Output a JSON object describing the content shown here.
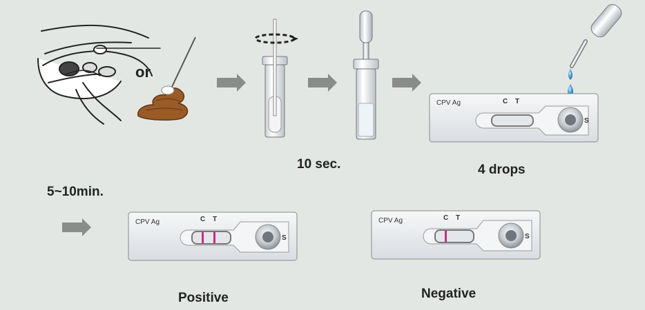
{
  "or_label": "or",
  "step_time": "10 sec.",
  "step_drops": "4 drops",
  "wait_time": "5~10min.",
  "cassette": {
    "name": "CPV Ag",
    "control_mark": "C",
    "test_mark": "T",
    "sample_mark": "S"
  },
  "results": {
    "positive": "Positive",
    "negative": "Negative"
  },
  "colors": {
    "background": "#e3e7e3",
    "arrow": "#8a8c8a",
    "result_line": "#d2287a",
    "drop": "#4fa9dc",
    "feces": "#9a5b27"
  }
}
